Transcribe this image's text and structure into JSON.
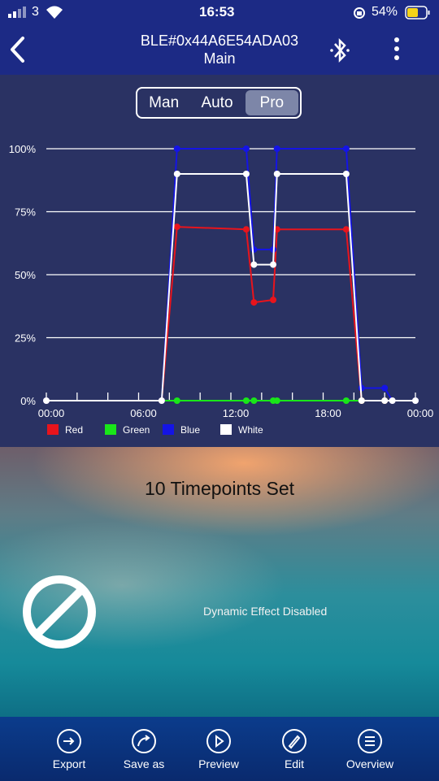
{
  "status_bar": {
    "carrier": "3",
    "time": "16:53",
    "battery": "54%"
  },
  "header": {
    "title": "BLE#0x44A6E54ADA03",
    "subtitle": "Main"
  },
  "mode_selector": {
    "options": [
      "Man",
      "Auto",
      "Pro"
    ],
    "selected": "Pro"
  },
  "chart_data": {
    "type": "line",
    "x": [
      0,
      7.5,
      8.5,
      13,
      13.5,
      14.75,
      15,
      19.5,
      20.5,
      22,
      22.5,
      24
    ],
    "xlim": [
      0,
      24
    ],
    "xticks": [
      {
        "value": 0,
        "label": "00:00"
      },
      {
        "value": 6,
        "label": "06:00"
      },
      {
        "value": 12,
        "label": "12:00"
      },
      {
        "value": 18,
        "label": "18:00"
      },
      {
        "value": 24,
        "label": "00:00"
      }
    ],
    "xminorticks": [
      2,
      4,
      8,
      10,
      14,
      16,
      20,
      22
    ],
    "ylim": [
      0,
      100
    ],
    "yticks": [
      {
        "value": 0,
        "label": "0%"
      },
      {
        "value": 25,
        "label": "25%"
      },
      {
        "value": 50,
        "label": "50%"
      },
      {
        "value": 75,
        "label": "75%"
      },
      {
        "value": 100,
        "label": "100%"
      }
    ],
    "grid": true,
    "series": [
      {
        "name": "Red",
        "color": "#e8141c",
        "values": [
          0,
          0,
          69,
          68,
          39,
          40,
          68,
          68,
          0,
          0,
          0,
          0
        ]
      },
      {
        "name": "Green",
        "color": "#19e619",
        "values": [
          0,
          0,
          0,
          0,
          0,
          0,
          0,
          0,
          0,
          0,
          0,
          0
        ]
      },
      {
        "name": "Blue",
        "color": "#1414e6",
        "values": [
          0,
          0,
          100,
          100,
          60,
          60,
          100,
          100,
          5,
          5,
          0,
          0
        ]
      },
      {
        "name": "White",
        "color": "#ffffff",
        "values": [
          0,
          0,
          90,
          90,
          54,
          54,
          90,
          90,
          0,
          0,
          0,
          0
        ]
      }
    ]
  },
  "banner": {
    "title": "10 Timepoints Set",
    "effect_status": "Dynamic Effect Disabled"
  },
  "toolbar": [
    "Export",
    "Save as",
    "Preview",
    "Edit",
    "Overview"
  ]
}
